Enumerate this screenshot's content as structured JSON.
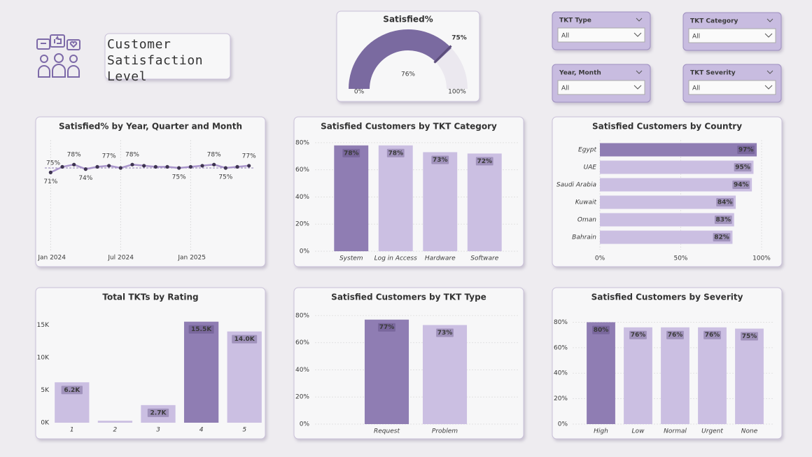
{
  "header": {
    "title": "Customer Satisfaction Level"
  },
  "slicers": [
    {
      "title": "TKT Type",
      "selection": "All"
    },
    {
      "title": "TKT Category",
      "selection": "All"
    },
    {
      "title": "Year, Month",
      "selection": "All"
    },
    {
      "title": "TKT Severity",
      "selection": "All"
    }
  ],
  "chart_data": [
    {
      "type": "gauge",
      "title": "Satisfied%",
      "value": 76,
      "value_label": "76%",
      "target": 75,
      "target_label": "75%",
      "color": "#7a6aa0",
      "ylim": [
        0,
        100
      ],
      "yticks": [
        {
          "value": 0,
          "label": "0%"
        },
        {
          "value": 100,
          "label": "100%"
        }
      ]
    },
    {
      "type": "line",
      "title": "Satisfied% by Year, Quarter and Month",
      "categories": [
        "Jan 2024",
        null,
        null,
        null,
        null,
        null,
        "Jul 2024",
        null,
        null,
        null,
        null,
        null,
        "Jan 2025",
        null,
        null,
        null,
        null,
        null
      ],
      "values": [
        71,
        76,
        78,
        74,
        76,
        77,
        75,
        78,
        77,
        76,
        76,
        75,
        76,
        77,
        78,
        75,
        76,
        77
      ],
      "value_labels": [
        "71%",
        null,
        "78%",
        "74%",
        null,
        "77%",
        null,
        "78%",
        null,
        null,
        null,
        "75%",
        null,
        null,
        "78%",
        "75%",
        null,
        "77%"
      ],
      "reference": {
        "value": 75,
        "label": "75%"
      },
      "color": "#a995cb",
      "marker_color": "#3d3350",
      "ylim": [
        0,
        100
      ]
    },
    {
      "type": "bar",
      "title": "Satisfied Customers by TKT Category",
      "categories": [
        "System",
        "Log in Access",
        "Hardware",
        "Software"
      ],
      "values": [
        78,
        78,
        73,
        72
      ],
      "value_labels": [
        "78%",
        "78%",
        "73%",
        "72%"
      ],
      "colors": [
        "#8f7db3",
        "#cbbfe2",
        "#cbbfe2",
        "#cbbfe2"
      ],
      "ylim": [
        0,
        82
      ],
      "yticks": [
        {
          "value": 0,
          "label": "0%"
        },
        {
          "value": 20,
          "label": "20%"
        },
        {
          "value": 40,
          "label": "40%"
        },
        {
          "value": 60,
          "label": "60%"
        },
        {
          "value": 80,
          "label": "80%"
        }
      ],
      "grid": true
    },
    {
      "type": "hbar",
      "title": "Satisfied Customers by Country",
      "categories": [
        "Egypt",
        "UAE",
        "Saudi Arabia",
        "Kuwait",
        "Oman",
        "Bahrain"
      ],
      "values": [
        97,
        95,
        94,
        84,
        83,
        82
      ],
      "value_labels": [
        "97%",
        "95%",
        "94%",
        "84%",
        "83%",
        "82%"
      ],
      "colors": [
        "#8f7db3",
        "#cbbfe2",
        "#cbbfe2",
        "#cbbfe2",
        "#cbbfe2",
        "#cbbfe2"
      ],
      "xlim": [
        0,
        100
      ],
      "xticks": [
        {
          "value": 0,
          "label": "0%"
        },
        {
          "value": 50,
          "label": "50%"
        },
        {
          "value": 100,
          "label": "100%"
        }
      ],
      "grid": true
    },
    {
      "type": "bar",
      "title": "Total TKTs by Rating",
      "categories": [
        "1",
        "2",
        "3",
        "4",
        "5"
      ],
      "values": [
        6200,
        300,
        2700,
        15500,
        14000
      ],
      "value_labels": [
        "6.2K",
        null,
        "2.7K",
        "15.5K",
        "14.0K"
      ],
      "colors": [
        "#cbbfe2",
        "#cbbfe2",
        "#cbbfe2",
        "#8f7db3",
        "#cbbfe2"
      ],
      "ylim": [
        0,
        16000
      ],
      "yticks": [
        {
          "value": 0,
          "label": "0K"
        },
        {
          "value": 5000,
          "label": "5K"
        },
        {
          "value": 10000,
          "label": "10K"
        },
        {
          "value": 15000,
          "label": "15K"
        }
      ],
      "grid": false
    },
    {
      "type": "bar",
      "title": "Satisfied Customers by TKT Type",
      "categories": [
        "Request",
        "Problem"
      ],
      "values": [
        77,
        73
      ],
      "value_labels": [
        "77%",
        "73%"
      ],
      "colors": [
        "#8f7db3",
        "#cbbfe2"
      ],
      "ylim": [
        0,
        82
      ],
      "yticks": [
        {
          "value": 0,
          "label": "0%"
        },
        {
          "value": 20,
          "label": "20%"
        },
        {
          "value": 40,
          "label": "40%"
        },
        {
          "value": 60,
          "label": "60%"
        },
        {
          "value": 80,
          "label": "80%"
        }
      ],
      "grid": true
    },
    {
      "type": "bar",
      "title": "Satisfied Customers by Severity",
      "categories": [
        "High",
        "Low",
        "Normal",
        "Urgent",
        "None"
      ],
      "values": [
        80,
        76,
        76,
        76,
        75
      ],
      "value_labels": [
        "80%",
        "76%",
        "76%",
        "76%",
        "75%"
      ],
      "colors": [
        "#8f7db3",
        "#cbbfe2",
        "#cbbfe2",
        "#cbbfe2",
        "#cbbfe2"
      ],
      "ylim": [
        0,
        83
      ],
      "yticks": [
        {
          "value": 0,
          "label": "0%"
        },
        {
          "value": 20,
          "label": "20%"
        },
        {
          "value": 40,
          "label": "40%"
        },
        {
          "value": 60,
          "label": "60%"
        },
        {
          "value": 80,
          "label": "80%"
        }
      ],
      "grid": true
    }
  ]
}
